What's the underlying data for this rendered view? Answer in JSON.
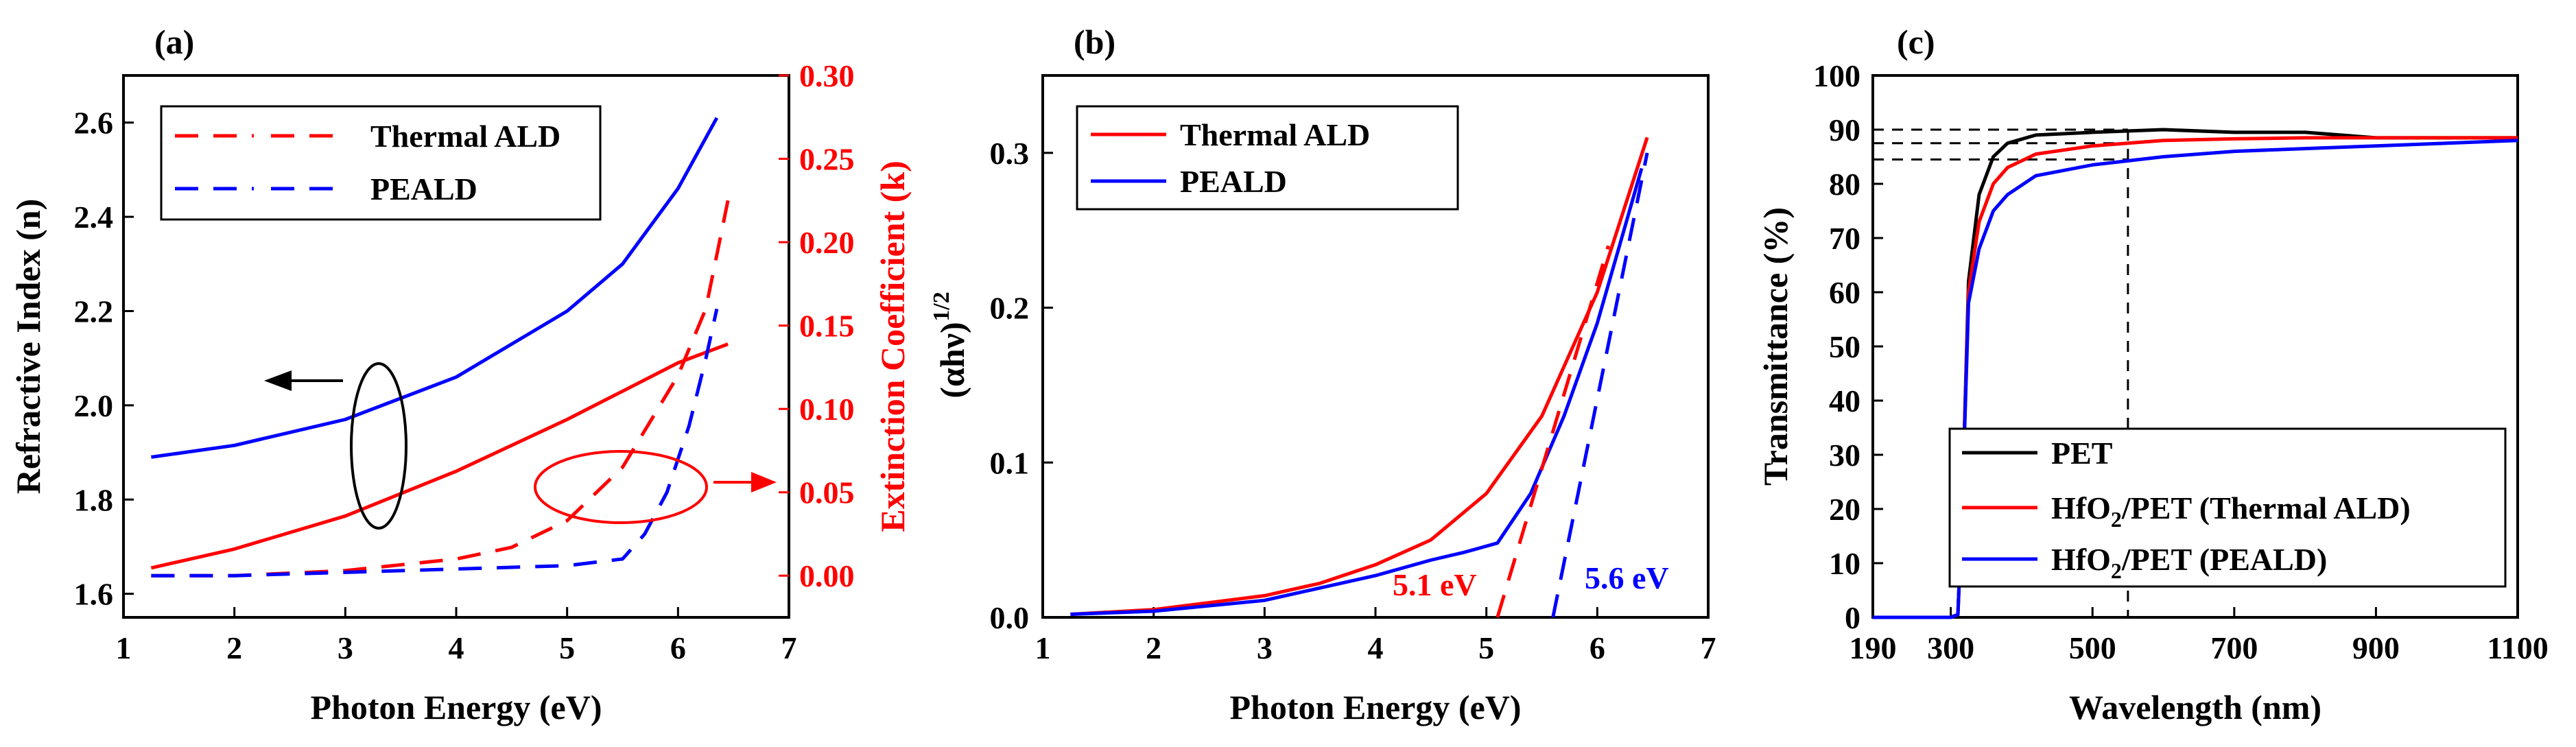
{
  "chart_data": [
    {
      "panel": "(a)",
      "type": "line",
      "xlabel": "Photon Energy (eV)",
      "ylabel": "Refractive Index (n)",
      "y2label": "Extinction Coefficient (k)",
      "xlim": [
        1,
        7
      ],
      "ylim": [
        1.55,
        2.7
      ],
      "y2lim": [
        -0.025,
        0.3
      ],
      "xticks": [
        "1",
        "2",
        "3",
        "4",
        "5",
        "6",
        "7"
      ],
      "yticks": [
        "1.6",
        "1.8",
        "2.0",
        "2.2",
        "2.4",
        "2.6"
      ],
      "y2ticks": [
        "0.00",
        "0.05",
        "0.10",
        "0.15",
        "0.20",
        "0.25",
        "0.30"
      ],
      "legend": [
        "Thermal ALD",
        "PEALD"
      ],
      "series": [
        {
          "name": "Thermal ALD n",
          "axis": "left",
          "color": "#ff0000",
          "dash": "solid",
          "x": [
            1.25,
            2,
            3,
            4,
            5,
            5.5,
            6,
            6.45
          ],
          "y": [
            1.655,
            1.695,
            1.765,
            1.86,
            1.97,
            2.03,
            2.09,
            2.13
          ]
        },
        {
          "name": "PEALD n",
          "axis": "left",
          "color": "#0000ff",
          "dash": "solid",
          "x": [
            1.25,
            2,
            3,
            4,
            5,
            5.5,
            6,
            6.35
          ],
          "y": [
            1.89,
            1.915,
            1.97,
            2.06,
            2.2,
            2.3,
            2.46,
            2.61
          ]
        },
        {
          "name": "Thermal ALD k",
          "axis": "right",
          "color": "#ff0000",
          "dash": "dashed",
          "x": [
            1.25,
            2,
            3,
            4,
            4.5,
            5,
            5.5,
            6,
            6.25,
            6.45
          ],
          "y": [
            0.0,
            0.0,
            0.003,
            0.01,
            0.017,
            0.033,
            0.065,
            0.12,
            0.16,
            0.225
          ]
        },
        {
          "name": "PEALD k",
          "axis": "right",
          "color": "#0000ff",
          "dash": "dashed",
          "x": [
            1.25,
            2,
            3,
            4,
            5,
            5.5,
            5.7,
            5.9,
            6.1,
            6.25,
            6.35
          ],
          "y": [
            0.0,
            0.0,
            0.002,
            0.004,
            0.006,
            0.01,
            0.025,
            0.05,
            0.09,
            0.13,
            0.16
          ]
        }
      ]
    },
    {
      "panel": "(b)",
      "type": "line",
      "xlabel": "Photon Energy (eV)",
      "ylabel": "(αhν)",
      "ylabel_sup": "1/2",
      "xlim": [
        1,
        7
      ],
      "ylim": [
        0,
        0.35
      ],
      "xticks": [
        "1",
        "2",
        "3",
        "4",
        "5",
        "6",
        "7"
      ],
      "yticks": [
        "0.0",
        "0.1",
        "0.2",
        "0.3"
      ],
      "legend": [
        "Thermal ALD",
        "PEALD"
      ],
      "annotations": [
        "5.1 eV",
        "5.6 eV"
      ],
      "series": [
        {
          "name": "Thermal ALD",
          "color": "#ff0000",
          "dash": "solid",
          "x": [
            1.25,
            2,
            3,
            3.5,
            4,
            4.5,
            5,
            5.5,
            6,
            6.45
          ],
          "y": [
            0.002,
            0.005,
            0.014,
            0.022,
            0.034,
            0.05,
            0.08,
            0.13,
            0.21,
            0.31
          ]
        },
        {
          "name": "PEALD",
          "color": "#0000ff",
          "dash": "solid",
          "x": [
            1.25,
            2,
            3,
            4,
            4.5,
            4.8,
            5.1,
            5.4,
            5.7,
            6,
            6.2,
            6.4
          ],
          "y": [
            0.002,
            0.004,
            0.011,
            0.027,
            0.037,
            0.042,
            0.048,
            0.08,
            0.13,
            0.19,
            0.24,
            0.29
          ]
        },
        {
          "name": "Thermal ALD fit",
          "color": "#ff0000",
          "dash": "dashed",
          "x": [
            5.1,
            6.1
          ],
          "y": [
            0.0,
            0.24
          ]
        },
        {
          "name": "PEALD fit",
          "color": "#0000ff",
          "dash": "dashed",
          "x": [
            5.6,
            6.45
          ],
          "y": [
            0.0,
            0.3
          ]
        }
      ]
    },
    {
      "panel": "(c)",
      "type": "line",
      "xlabel": "Wavelength (nm)",
      "ylabel": "Transmittance (%)",
      "xlim": [
        190,
        1100
      ],
      "ylim": [
        0,
        100
      ],
      "xticks": [
        "190",
        "300",
        "500",
        "700",
        "900",
        "1100"
      ],
      "yticks": [
        "0",
        "10",
        "20",
        "30",
        "40",
        "50",
        "60",
        "70",
        "80",
        "90",
        "100"
      ],
      "legend": [
        "PET",
        "HfO2/PET (Thermal ALD)",
        "HfO2/PET (PEALD)"
      ],
      "reference_x": 550,
      "reference_y": [
        90,
        87.5,
        84.5
      ],
      "series": [
        {
          "name": "PET",
          "color": "#000000",
          "x": [
            190,
            300,
            310,
            316,
            325,
            340,
            360,
            380,
            420,
            500,
            600,
            700,
            800,
            900,
            1000,
            1100
          ],
          "y": [
            0,
            0,
            0.5,
            20,
            62,
            78,
            85,
            87.5,
            89,
            89.5,
            90,
            89.5,
            89.5,
            88.5,
            88.5,
            88.5
          ]
        },
        {
          "name": "HfO2/PET (Thermal ALD)",
          "color": "#ff0000",
          "x": [
            190,
            300,
            310,
            316,
            325,
            340,
            360,
            380,
            420,
            500,
            600,
            700,
            800,
            900,
            1000,
            1100
          ],
          "y": [
            0,
            0,
            0.5,
            20,
            60,
            73,
            80,
            83,
            85.5,
            87,
            88,
            88.3,
            88.5,
            88.5,
            88.5,
            88.5
          ]
        },
        {
          "name": "HfO2/PET (PEALD)",
          "color": "#0000ff",
          "x": [
            190,
            300,
            310,
            316,
            325,
            340,
            360,
            380,
            420,
            500,
            600,
            700,
            800,
            900,
            1000,
            1100
          ],
          "y": [
            0,
            0,
            0.5,
            20,
            58,
            68,
            75,
            78,
            81.5,
            83.5,
            85,
            86,
            86.5,
            87,
            87.5,
            88
          ]
        }
      ]
    }
  ],
  "legend_sub": {
    "prefix": "HfO",
    "sub": "2",
    "thermal_suffix": "/PET (Thermal ALD)",
    "peald_suffix": "/PET (PEALD)"
  }
}
